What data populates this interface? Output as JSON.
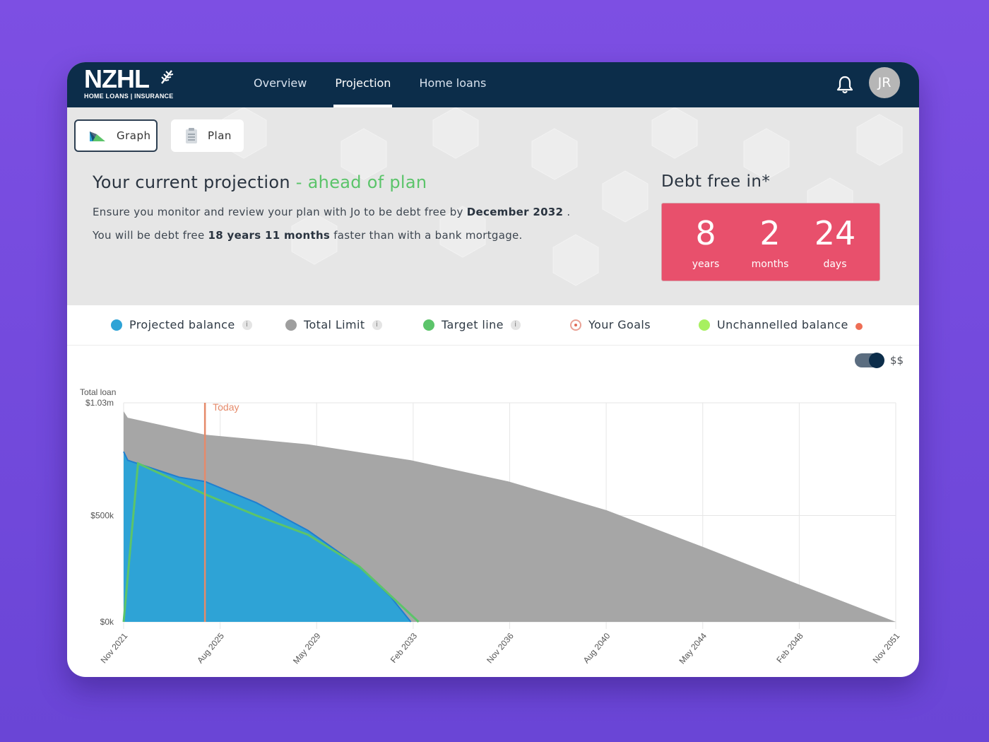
{
  "brand": {
    "name": "NZHL",
    "tagline": "HOME LOANS | INSURANCE"
  },
  "nav": {
    "tabs": [
      {
        "label": "Overview"
      },
      {
        "label": "Projection"
      },
      {
        "label": "Home loans"
      }
    ],
    "active": "Projection"
  },
  "user": {
    "initials": "JR"
  },
  "view_toggle": {
    "graph_label": "Graph",
    "plan_label": "Plan",
    "selected": "Graph"
  },
  "projection": {
    "title": "Your current projection",
    "status": "- ahead of plan",
    "line1_pre": "Ensure you monitor and review your plan with Jo to be debt free by ",
    "line1_bold": "December 2032",
    "line1_post": " .",
    "line2_pre": "You will be debt free ",
    "line2_bold": "18 years 11 months",
    "line2_post": " faster than with a bank mortgage."
  },
  "debt_free": {
    "title": "Debt free in*",
    "years": "8",
    "years_label": "years",
    "months": "2",
    "months_label": "months",
    "days": "24",
    "days_label": "days"
  },
  "legend": [
    {
      "label": "Projected balance",
      "color": "#2ea3d6",
      "info": "i"
    },
    {
      "label": "Total Limit",
      "color": "#9e9e9e",
      "info": "i"
    },
    {
      "label": "Target line",
      "color": "#5cc46a",
      "info": "i"
    },
    {
      "label": "Your Goals",
      "color": "#e06a55"
    },
    {
      "label": "Unchannelled balance",
      "color": "#a7f060"
    }
  ],
  "currency_toggle": {
    "label": "$$",
    "on": true
  },
  "chart_data": {
    "type": "area",
    "ylabel_line1": "Total loan",
    "ylim": [
      0,
      1030000
    ],
    "y_ticks": [
      {
        "value": 1030000,
        "label": "$1.03m"
      },
      {
        "value": 500000,
        "label": "$500k"
      },
      {
        "value": 0,
        "label": "$0k"
      }
    ],
    "x_ticks": [
      "Nov 2021",
      "Aug 2025",
      "May 2029",
      "Feb 2033",
      "Nov 2036",
      "Aug 2040",
      "May 2044",
      "Feb 2048",
      "Nov 2051"
    ],
    "today_label": "Today",
    "today_x": 2025.0,
    "series": [
      {
        "name": "Total Limit",
        "color": "#a6a6a6",
        "x": [
          2021.84,
          2022.0,
          2025.0,
          2029.0,
          2033.0,
          2036.8,
          2040.6,
          2044.4,
          2048.1,
          2051.84
        ],
        "y": [
          990000,
          960000,
          880000,
          835000,
          760000,
          660000,
          525000,
          350000,
          175000,
          0
        ]
      },
      {
        "name": "Projected balance",
        "color": "#2ea3d6",
        "x": [
          2021.84,
          2022.0,
          2024.0,
          2025.0,
          2027.0,
          2029.0,
          2031.0,
          2032.2,
          2033.0
        ],
        "y": [
          800000,
          760000,
          680000,
          660000,
          560000,
          430000,
          260000,
          120000,
          0
        ]
      },
      {
        "name": "Target line",
        "color": "#5cc46a",
        "x": [
          2021.84,
          2022.4,
          2025.0,
          2027.0,
          2029.0,
          2031.0,
          2033.3
        ],
        "y": [
          0,
          745000,
          600000,
          500000,
          410000,
          260000,
          0
        ]
      }
    ]
  }
}
